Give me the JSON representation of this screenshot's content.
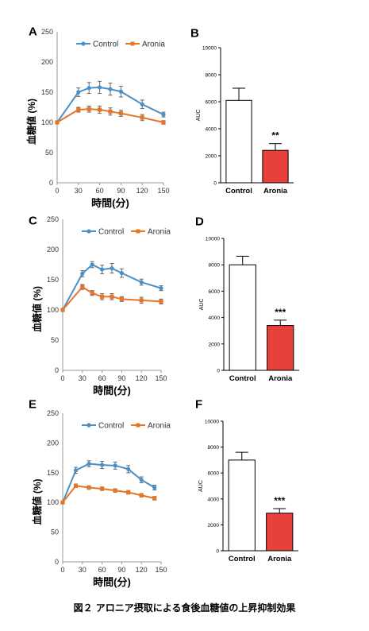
{
  "figure": {
    "caption": "図２ アロニア摂取による食後血糖値の上昇抑制効果"
  },
  "colors": {
    "control_line": "#4a90c8",
    "aronia_line": "#e8742a",
    "aronia_bar": "#e8403a",
    "control_bar": "#ffffff"
  },
  "chart_data": [
    {
      "panel": "A",
      "type": "line",
      "xlabel": "時間(分)",
      "ylabel": "血糖値 (%)",
      "ylim": [
        0,
        250
      ],
      "yticks": [
        0,
        50,
        100,
        150,
        200,
        250
      ],
      "xlim": [
        0,
        150
      ],
      "xticks": [
        0,
        30,
        60,
        90,
        120,
        150
      ],
      "legend": "top",
      "series": [
        {
          "name": "Control",
          "x": [
            0,
            30,
            45,
            60,
            75,
            90,
            120,
            150
          ],
          "values": [
            100,
            150,
            157,
            158,
            155,
            151,
            130,
            113
          ],
          "errors": [
            0,
            7,
            9,
            10,
            10,
            9,
            7,
            4
          ]
        },
        {
          "name": "Aronia",
          "x": [
            0,
            30,
            45,
            60,
            75,
            90,
            120,
            150
          ],
          "values": [
            100,
            121,
            122,
            121,
            118,
            115,
            108,
            100
          ],
          "errors": [
            0,
            4,
            5,
            6,
            6,
            5,
            5,
            3
          ]
        }
      ]
    },
    {
      "panel": "B",
      "type": "bar",
      "ylabel": "AUC",
      "ylim": [
        0,
        10000
      ],
      "yticks": [
        0,
        2000,
        4000,
        6000,
        8000,
        10000
      ],
      "categories": [
        "Control",
        "Aronia"
      ],
      "values": [
        6100,
        2400
      ],
      "errors": [
        900,
        500
      ],
      "annotation": "**"
    },
    {
      "panel": "C",
      "type": "line",
      "xlabel": "時間(分)",
      "ylabel": "血糖値 (%)",
      "ylim": [
        0,
        250
      ],
      "yticks": [
        0,
        50,
        100,
        150,
        200,
        250
      ],
      "xlim": [
        0,
        150
      ],
      "xticks": [
        0,
        30,
        60,
        90,
        120,
        150
      ],
      "legend": "top",
      "series": [
        {
          "name": "Control",
          "x": [
            0,
            30,
            45,
            60,
            75,
            90,
            120,
            150
          ],
          "values": [
            100,
            160,
            175,
            167,
            169,
            161,
            146,
            136
          ],
          "errors": [
            0,
            5,
            5,
            7,
            8,
            7,
            5,
            4
          ]
        },
        {
          "name": "Aronia",
          "x": [
            0,
            30,
            45,
            60,
            75,
            90,
            120,
            150
          ],
          "values": [
            100,
            138,
            128,
            122,
            122,
            118,
            116,
            114
          ],
          "errors": [
            0,
            4,
            4,
            5,
            5,
            4,
            5,
            4
          ]
        }
      ]
    },
    {
      "panel": "D",
      "type": "bar",
      "ylabel": "AUC",
      "ylim": [
        0,
        10000
      ],
      "yticks": [
        0,
        2000,
        4000,
        6000,
        8000,
        10000
      ],
      "categories": [
        "Control",
        "Aronia"
      ],
      "values": [
        8000,
        3400
      ],
      "errors": [
        650,
        400
      ],
      "annotation": "***"
    },
    {
      "panel": "E",
      "type": "line",
      "xlabel": "時間(分)",
      "ylabel": "血糖値 (%)",
      "ylim": [
        0,
        250
      ],
      "yticks": [
        0,
        50,
        100,
        150,
        200,
        250
      ],
      "xlim": [
        0,
        150
      ],
      "xticks": [
        0,
        30,
        60,
        90,
        120,
        150
      ],
      "legend": "top",
      "series": [
        {
          "name": "Control",
          "x": [
            0,
            20,
            40,
            60,
            80,
            100,
            120,
            140
          ],
          "values": [
            100,
            154,
            165,
            163,
            162,
            156,
            138,
            125
          ],
          "errors": [
            0,
            5,
            5,
            6,
            6,
            6,
            5,
            4
          ]
        },
        {
          "name": "Aronia",
          "x": [
            0,
            20,
            40,
            60,
            80,
            100,
            120,
            140
          ],
          "values": [
            100,
            128,
            125,
            123,
            120,
            117,
            112,
            107
          ],
          "errors": [
            0,
            3,
            3,
            3,
            3,
            3,
            3,
            3
          ]
        }
      ]
    },
    {
      "panel": "F",
      "type": "bar",
      "ylabel": "AUC",
      "ylim": [
        0,
        10000
      ],
      "yticks": [
        0,
        2000,
        4000,
        6000,
        8000,
        10000
      ],
      "categories": [
        "Control",
        "Aronia"
      ],
      "values": [
        7000,
        2900
      ],
      "errors": [
        600,
        350
      ],
      "annotation": "***"
    }
  ]
}
